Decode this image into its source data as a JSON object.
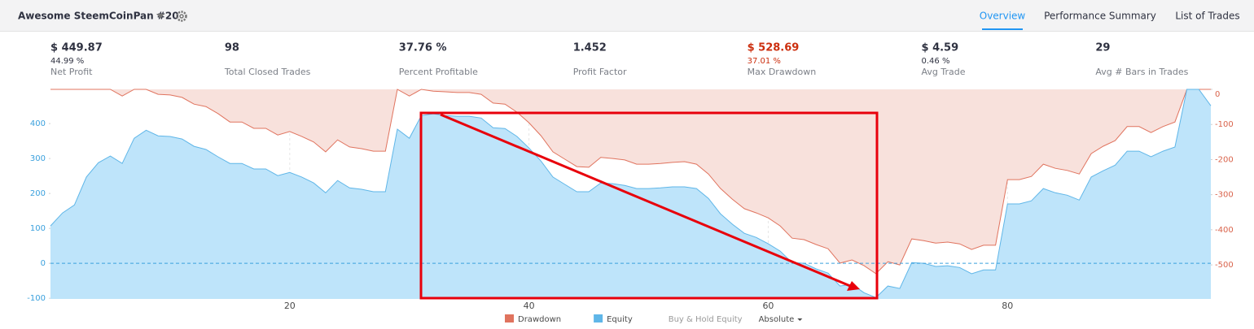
{
  "header": {
    "title": "Awesome SteemCoinPan #20",
    "tabs": [
      "Overview",
      "Performance Summary",
      "List of Trades"
    ]
  },
  "metrics": [
    {
      "value": "$ 449.87",
      "sub": "44.99 %",
      "label": "Net Profit"
    },
    {
      "value": "98",
      "label": "Total Closed Trades"
    },
    {
      "value": "37.76 %",
      "label": "Percent Profitable"
    },
    {
      "value": "1.452",
      "label": "Profit Factor"
    },
    {
      "value": "$ 528.69",
      "sub": "37.01 %",
      "label": "Max Drawdown",
      "color": "#cc2f0f"
    },
    {
      "value": "$ 4.59",
      "sub": "0.46 %",
      "label": "Avg Trade"
    },
    {
      "value": "29",
      "label": "Avg # Bars in Trades"
    }
  ],
  "chart_data": {
    "type": "area",
    "x": [
      0,
      1,
      2,
      3,
      4,
      5,
      6,
      7,
      8,
      9,
      10,
      11,
      12,
      13,
      14,
      15,
      16,
      17,
      18,
      19,
      20,
      21,
      22,
      23,
      24,
      25,
      26,
      27,
      28,
      29,
      30,
      31,
      32,
      33,
      34,
      35,
      36,
      37,
      38,
      39,
      40,
      41,
      42,
      43,
      44,
      45,
      46,
      47,
      48,
      49,
      50,
      51,
      52,
      53,
      54,
      55,
      56,
      57,
      58,
      59,
      60,
      61,
      62,
      63,
      64,
      65,
      66,
      67,
      68,
      69,
      70,
      71,
      72,
      73,
      74,
      75,
      76,
      77,
      78,
      79,
      80,
      81,
      82,
      83,
      84,
      85,
      86,
      87,
      88,
      89,
      90,
      91,
      92,
      93,
      94,
      95,
      96,
      97
    ],
    "series": [
      {
        "name": "Drawdown",
        "color": "#e0735e",
        "fill": "#f8e1dc",
        "axis": "y2",
        "values": [
          0,
          0,
          0,
          0,
          0,
          0,
          -19,
          0,
          0,
          -14,
          -16,
          -23,
          -42,
          -49,
          -69,
          -93,
          -93,
          -111,
          -111,
          -130,
          -120,
          -134,
          -150,
          -178,
          -144,
          -164,
          -169,
          -176,
          -176,
          0,
          -19,
          0,
          -5,
          -7,
          -9,
          -9,
          -14,
          -39,
          -42,
          -65,
          -95,
          -132,
          -178,
          -199,
          -220,
          -222,
          -194,
          -197,
          -201,
          -213,
          -213,
          -211,
          -208,
          -206,
          -213,
          -241,
          -282,
          -313,
          -340,
          -352,
          -366,
          -389,
          -424,
          -428,
          -442,
          -454,
          -495,
          -486,
          -502,
          -525,
          -491,
          -500,
          -426,
          -431,
          -438,
          -435,
          -440,
          -456,
          -444,
          -444,
          -257,
          -257,
          -248,
          -213,
          -225,
          -231,
          -241,
          -183,
          -162,
          -146,
          -106,
          -106,
          -123,
          -106,
          -93,
          0,
          0,
          0
        ]
      },
      {
        "name": "Equity",
        "color": "#5fb6e8",
        "fill": "#bee4fa",
        "values": [
          107,
          144,
          167,
          247,
          288,
          307,
          286,
          358,
          381,
          365,
          363,
          356,
          335,
          326,
          305,
          286,
          286,
          270,
          270,
          251,
          260,
          247,
          230,
          202,
          237,
          216,
          212,
          205,
          205,
          384,
          358,
          423,
          428,
          423,
          421,
          421,
          416,
          388,
          386,
          363,
          330,
          293,
          247,
          226,
          205,
          205,
          230,
          228,
          223,
          214,
          214,
          216,
          219,
          219,
          214,
          186,
          142,
          112,
          86,
          74,
          56,
          35,
          2,
          0,
          -16,
          -28,
          -65,
          -60,
          -84,
          -98,
          -65,
          -72,
          2,
          0,
          -9,
          -7,
          -12,
          -30,
          -19,
          -19,
          170,
          170,
          179,
          214,
          202,
          195,
          181,
          247,
          265,
          281,
          321,
          321,
          305,
          321,
          333,
          498,
          498,
          451
        ]
      }
    ],
    "legend_extra": [
      "Buy & Hold Equity"
    ],
    "scale_mode": "Absolute",
    "xlim": [
      0,
      97
    ],
    "xticks": [
      20,
      40,
      60,
      80
    ],
    "ylim": [
      -102,
      498
    ],
    "yticks": [
      -100,
      0,
      100,
      200,
      300,
      400
    ],
    "y2lim": [
      -597,
      0
    ],
    "y2ticks": [
      -500,
      -400,
      -300,
      -200,
      -100,
      0
    ],
    "grid": true
  }
}
